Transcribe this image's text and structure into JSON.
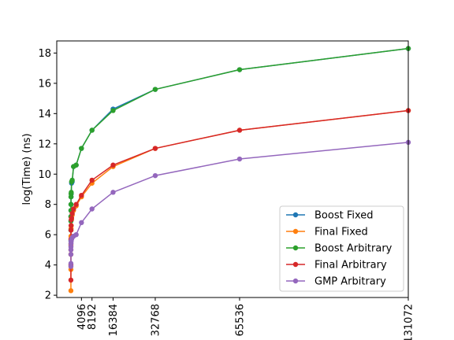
{
  "chart_data": {
    "type": "line",
    "title": "",
    "xlabel": "",
    "ylabel": "log(Time) (ns)",
    "xlim": [
      -5500,
      131072
    ],
    "ylim": [
      1.85,
      18.8
    ],
    "xticks": [
      4096,
      8192,
      16384,
      32768,
      65536,
      131072
    ],
    "xtick_labels": [
      "4096",
      "8192",
      "16384",
      "32768",
      "65536",
      "131072"
    ],
    "yticks": [
      2,
      4,
      6,
      8,
      10,
      12,
      14,
      16,
      18
    ],
    "ytick_labels": [
      "2",
      "4",
      "6",
      "8",
      "10",
      "12",
      "14",
      "16",
      "18"
    ],
    "grid": false,
    "legend_position": "lower-right",
    "series": [
      {
        "name": "Boost Fixed",
        "color": "#1f77b4",
        "x": [
          1,
          2,
          4,
          8,
          16,
          32,
          64,
          128,
          256,
          512,
          1024,
          2048,
          4096,
          8192,
          16384,
          32768,
          65536,
          131072
        ],
        "y": [
          5.6,
          6.3,
          6.9,
          7.2,
          7.6,
          8.0,
          8.5,
          8.7,
          9.4,
          9.5,
          10.5,
          10.6,
          11.7,
          12.9,
          14.3,
          15.6,
          16.9,
          18.3
        ]
      },
      {
        "name": "Final Fixed",
        "color": "#ff7f0e",
        "x": [
          1,
          2,
          4,
          8,
          16,
          32,
          64,
          128,
          256,
          512,
          1024,
          2048,
          4096,
          8192,
          16384,
          32768,
          65536,
          131072
        ],
        "y": [
          2.3,
          3.7,
          4.7,
          5.3,
          5.7,
          5.9,
          6.4,
          6.6,
          7.0,
          7.3,
          7.6,
          7.9,
          8.5,
          9.4,
          10.5,
          11.7,
          12.9,
          14.2
        ]
      },
      {
        "name": "Boost Arbitrary",
        "color": "#2ca02c",
        "x": [
          1,
          2,
          4,
          8,
          16,
          32,
          64,
          128,
          256,
          512,
          1024,
          2048,
          4096,
          8192,
          16384,
          32768,
          65536,
          131072
        ],
        "y": [
          6.3,
          6.9,
          7.2,
          7.6,
          8.0,
          8.5,
          8.7,
          8.8,
          9.5,
          9.6,
          10.5,
          10.6,
          11.7,
          12.9,
          14.2,
          15.6,
          16.9,
          18.3
        ]
      },
      {
        "name": "Final Arbitrary",
        "color": "#d62728",
        "x": [
          1,
          2,
          4,
          8,
          16,
          32,
          64,
          128,
          256,
          512,
          1024,
          2048,
          4096,
          8192,
          16384,
          32768,
          65536,
          131072
        ],
        "y": [
          3.0,
          4.0,
          5.0,
          5.4,
          5.7,
          6.3,
          6.6,
          7.0,
          7.1,
          7.4,
          7.7,
          8.0,
          8.6,
          9.6,
          10.6,
          11.7,
          12.9,
          14.2
        ]
      },
      {
        "name": "GMP Arbitrary",
        "color": "#9467bd",
        "x": [
          1,
          2,
          4,
          8,
          16,
          32,
          64,
          128,
          256,
          512,
          1024,
          2048,
          4096,
          8192,
          16384,
          32768,
          65536,
          131072
        ],
        "y": [
          3.9,
          4.1,
          4.7,
          5.0,
          5.2,
          5.4,
          5.5,
          5.6,
          5.7,
          5.8,
          5.9,
          6.0,
          6.8,
          7.7,
          8.8,
          9.9,
          11.0,
          12.1
        ]
      }
    ]
  }
}
